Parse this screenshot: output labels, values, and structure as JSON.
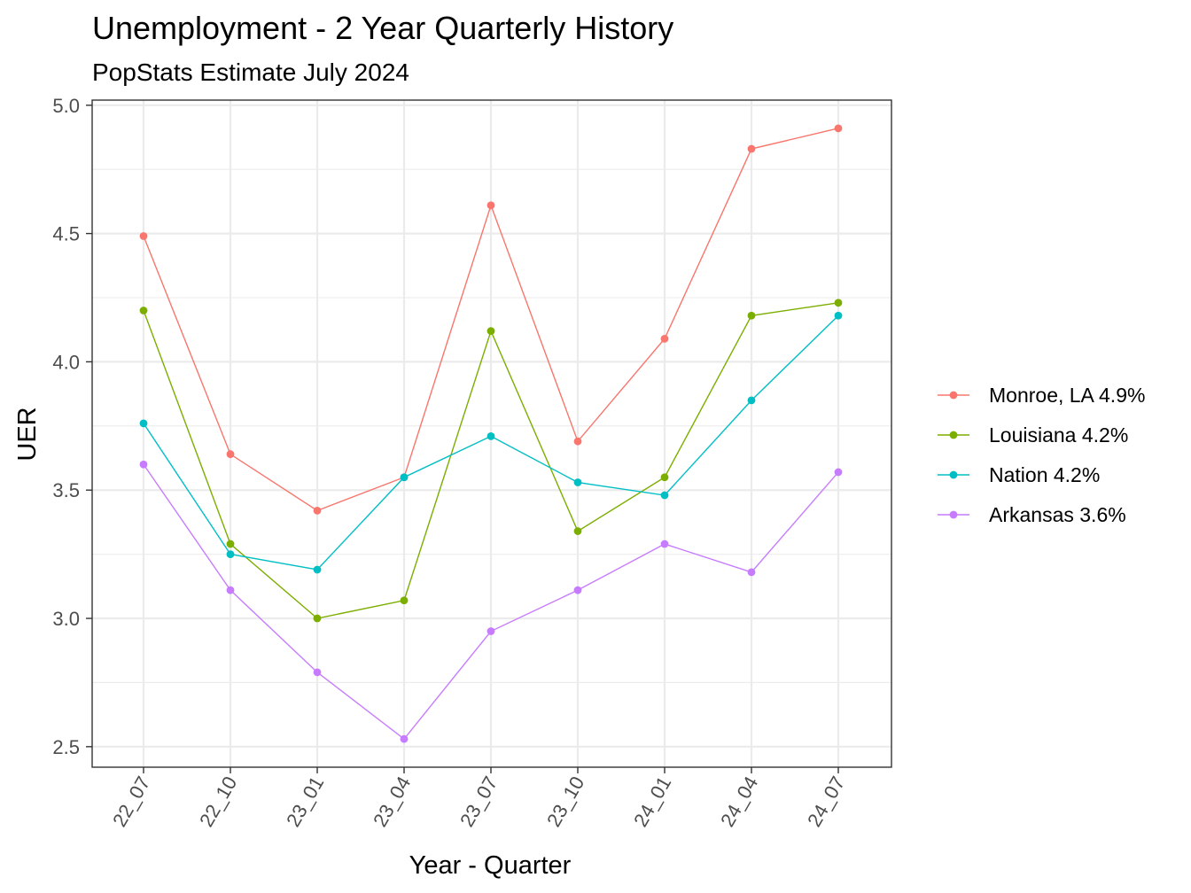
{
  "chart_data": {
    "type": "line",
    "title": "Unemployment - 2 Year Quarterly History",
    "subtitle": "PopStats Estimate July 2024",
    "xlabel": "Year - Quarter",
    "ylabel": "UER",
    "ylim": [
      2.42,
      5.02
    ],
    "yticks": [
      "2.5",
      "3.0",
      "3.5",
      "4.0",
      "4.5",
      "5.0"
    ],
    "categories": [
      "22_07",
      "22_10",
      "23_01",
      "23_04",
      "23_07",
      "23_10",
      "24_01",
      "24_04",
      "24_07"
    ],
    "grid": true,
    "legend_position": "right",
    "series": [
      {
        "name": "Monroe, LA 4.9%",
        "color": "#F8766D",
        "values": [
          4.49,
          3.64,
          3.42,
          3.55,
          4.61,
          3.69,
          4.09,
          4.83,
          4.91
        ]
      },
      {
        "name": "Louisiana 4.2%",
        "color": "#7CAE00",
        "values": [
          4.2,
          3.29,
          3.0,
          3.07,
          4.12,
          3.34,
          3.55,
          4.18,
          4.23
        ]
      },
      {
        "name": "Nation 4.2%",
        "color": "#00BFC4",
        "values": [
          3.76,
          3.25,
          3.19,
          3.55,
          3.71,
          3.53,
          3.48,
          3.85,
          4.18
        ]
      },
      {
        "name": "Arkansas 3.6%",
        "color": "#C77CFF",
        "values": [
          3.6,
          3.11,
          2.79,
          2.53,
          2.95,
          3.11,
          3.29,
          3.18,
          3.57
        ]
      }
    ]
  }
}
